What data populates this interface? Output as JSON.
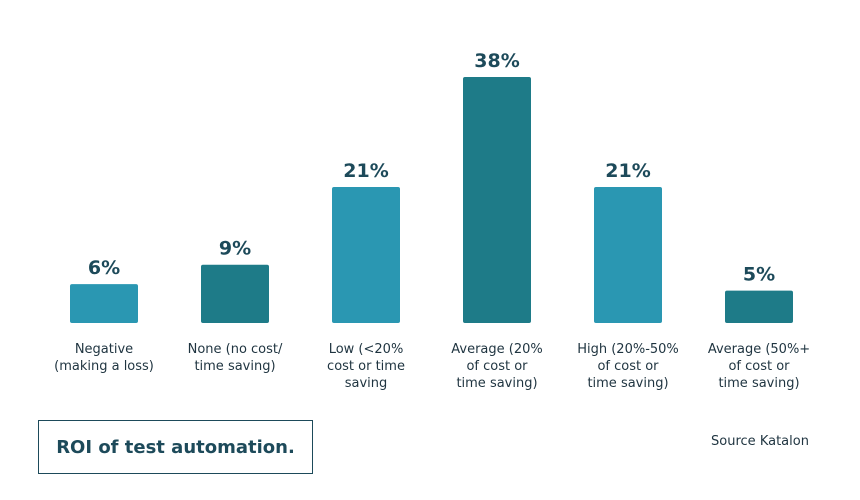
{
  "chart_data": {
    "type": "bar",
    "title": "ROI of test automation.",
    "source": "Source Katalon",
    "categories": [
      "Negative\n(making a loss)",
      "None (no cost/\ntime saving)",
      "Low (<20%\ncost or time\nsaving",
      "Average (20%\nof cost or\ntime saving)",
      "High (20%-50%\nof cost or\ntime saving)",
      "Average (50%+\nof cost or\ntime saving)"
    ],
    "values": [
      6,
      9,
      21,
      38,
      21,
      5
    ],
    "value_labels": [
      "6%",
      "9%",
      "21%",
      "38%",
      "21%",
      "5%"
    ],
    "colors": [
      "#2a97b2",
      "#1e7b88",
      "#2a97b2",
      "#1e7b88",
      "#2a97b2",
      "#1e7b88"
    ]
  }
}
